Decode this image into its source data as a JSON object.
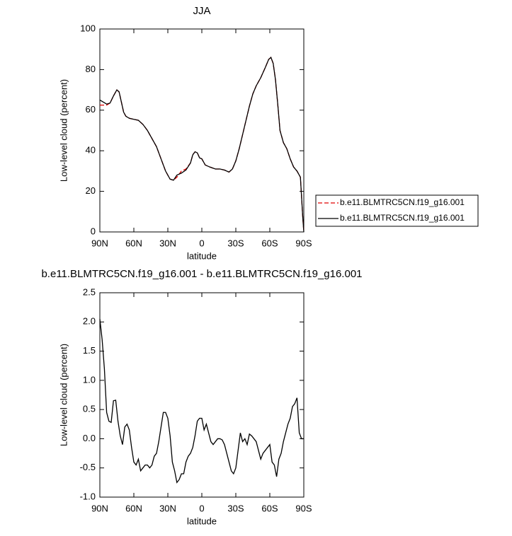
{
  "chart_data": [
    {
      "type": "line",
      "title": "JJA",
      "xlabel": "latitude",
      "ylabel": "Low-level cloud (percent)",
      "x": [
        90,
        87,
        84,
        81,
        78,
        75,
        73,
        71,
        69,
        67,
        64,
        60,
        56,
        52,
        48,
        44,
        40,
        36,
        32,
        30,
        28,
        25,
        22,
        18,
        14,
        10,
        8,
        6,
        4,
        2,
        0,
        -3,
        -7,
        -12,
        -16,
        -20,
        -24,
        -27,
        -30,
        -33,
        -36,
        -39,
        -42,
        -45,
        -48,
        -52,
        -56,
        -59,
        -61,
        -63,
        -65,
        -67,
        -69,
        -72,
        -75,
        -78,
        -81,
        -84,
        -87,
        -89,
        -90
      ],
      "xlim": [
        90,
        -90
      ],
      "xticks": [
        {
          "value": 90,
          "label": "90N"
        },
        {
          "value": 60,
          "label": "60N"
        },
        {
          "value": 30,
          "label": "30N"
        },
        0,
        {
          "value": -30,
          "label": "30S"
        },
        {
          "value": -60,
          "label": "60S"
        },
        {
          "value": -90,
          "label": "90S"
        }
      ],
      "ylim": [
        0,
        100
      ],
      "yticks": [
        0,
        20,
        40,
        60,
        80,
        100
      ],
      "legend": "right",
      "series": [
        {
          "name": "b.e11.BLMTRC5CN.f19_g16.001",
          "color": "#e00000",
          "linestyle": "dashed",
          "values": [
            62.5,
            62.5,
            62.5,
            63.5,
            67,
            70,
            69,
            64,
            59,
            57,
            56,
            55.5,
            55,
            53,
            50,
            46,
            42,
            36,
            30,
            28,
            26,
            25.5,
            27,
            30,
            31,
            34,
            38,
            39.5,
            39,
            36.5,
            36,
            33,
            32,
            31,
            31,
            30.5,
            29.5,
            31,
            35,
            41,
            48,
            55,
            62,
            68,
            72,
            76,
            81,
            85,
            86,
            83,
            75,
            63,
            50,
            44,
            41,
            36,
            32,
            30,
            27,
            8,
            0
          ]
        },
        {
          "name": "b.e11.BLMTRC5CN.f19_g16.001",
          "color": "#000000",
          "linestyle": "solid",
          "values": [
            65,
            64,
            63,
            63.5,
            67,
            70,
            69,
            64,
            59,
            57,
            56,
            55.5,
            55,
            53,
            50,
            46,
            42,
            36,
            30,
            28,
            26,
            25.5,
            28,
            29,
            30.5,
            34,
            38,
            39.5,
            39,
            36.5,
            36,
            33,
            32,
            31,
            31,
            30.5,
            29.5,
            31,
            35,
            41,
            48,
            55,
            62,
            68,
            72,
            76,
            81,
            85,
            86,
            83,
            75,
            63,
            50,
            44,
            41,
            36,
            32,
            30,
            27,
            8,
            0
          ]
        }
      ]
    },
    {
      "type": "line",
      "title": "b.e11.BLMTRC5CN.f19_g16.001 - b.e11.BLMTRC5CN.f19_g16.001",
      "xlabel": "latitude",
      "ylabel": "Low-level cloud (percent)",
      "x": [
        90,
        88,
        86,
        84,
        82,
        80,
        78,
        76,
        74,
        72,
        70,
        68,
        66,
        64,
        62,
        60,
        58,
        56,
        54,
        52,
        50,
        48,
        46,
        44,
        42,
        40,
        38,
        36,
        34,
        32,
        30,
        28,
        26,
        24,
        22,
        20,
        18,
        16,
        14,
        12,
        10,
        8,
        6,
        4,
        2,
        0,
        -2,
        -4,
        -6,
        -8,
        -10,
        -12,
        -14,
        -16,
        -18,
        -20,
        -22,
        -24,
        -26,
        -28,
        -30,
        -32,
        -34,
        -36,
        -38,
        -40,
        -42,
        -44,
        -46,
        -48,
        -50,
        -52,
        -54,
        -56,
        -58,
        -60,
        -62,
        -64,
        -66,
        -68,
        -70,
        -72,
        -74,
        -76,
        -78,
        -80,
        -82,
        -84,
        -86,
        -88,
        -90
      ],
      "xlim": [
        90,
        -90
      ],
      "xticks": [
        {
          "value": 90,
          "label": "90N"
        },
        {
          "value": 60,
          "label": "60N"
        },
        {
          "value": 30,
          "label": "30N"
        },
        0,
        {
          "value": -30,
          "label": "30S"
        },
        {
          "value": -60,
          "label": "60S"
        },
        {
          "value": -90,
          "label": "90S"
        }
      ],
      "ylim": [
        -1,
        2.5
      ],
      "yticks": [
        {
          "value": -1,
          "label": "-1.0"
        },
        -0.5,
        {
          "value": 0,
          "label": "0.0"
        },
        0.5,
        {
          "value": 1,
          "label": "1.0"
        },
        1.5,
        {
          "value": 2,
          "label": "2.0"
        },
        2.5
      ],
      "series": [
        {
          "color": "#000000",
          "linestyle": "solid",
          "values": [
            2.05,
            1.7,
            1.2,
            0.45,
            0.3,
            0.28,
            0.65,
            0.66,
            0.3,
            0.05,
            -0.1,
            0.2,
            0.25,
            0.15,
            -0.15,
            -0.4,
            -0.45,
            -0.35,
            -0.55,
            -0.5,
            -0.45,
            -0.45,
            -0.5,
            -0.45,
            -0.3,
            -0.25,
            -0.05,
            0.2,
            0.45,
            0.45,
            0.35,
            0.05,
            -0.4,
            -0.55,
            -0.75,
            -0.7,
            -0.6,
            -0.6,
            -0.4,
            -0.3,
            -0.25,
            -0.15,
            0.05,
            0.3,
            0.35,
            0.35,
            0.15,
            0.25,
            0.1,
            -0.05,
            -0.1,
            -0.05,
            0,
            0,
            -0.02,
            -0.1,
            -0.25,
            -0.4,
            -0.55,
            -0.6,
            -0.5,
            -0.2,
            0.1,
            -0.05,
            0,
            -0.1,
            0.08,
            0.05,
            0,
            -0.05,
            -0.2,
            -0.35,
            -0.25,
            -0.2,
            -0.15,
            -0.1,
            -0.4,
            -0.45,
            -0.65,
            -0.35,
            -0.25,
            -0.05,
            0.1,
            0.25,
            0.35,
            0.55,
            0.6,
            0.7,
            0.1,
            0,
            0
          ]
        }
      ]
    }
  ]
}
